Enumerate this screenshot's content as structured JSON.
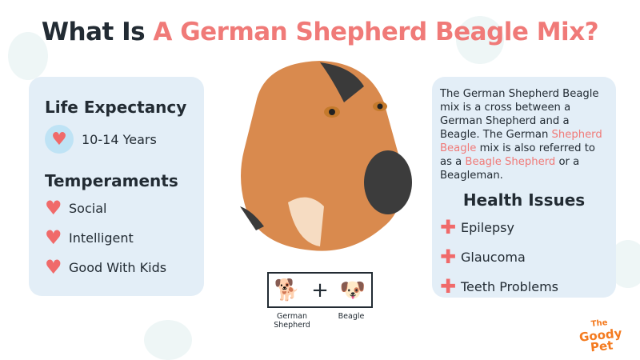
{
  "title": {
    "part1": "What Is ",
    "part2": "A German Shepherd Beagle Mix?"
  },
  "left": {
    "life_heading": "Life Expectancy",
    "life_value": "10-14 Years",
    "temp_heading": "Temperaments",
    "temperaments": [
      "Social",
      "Intelligent",
      "Good With Kids"
    ]
  },
  "right": {
    "desc": [
      "The German Shepherd Beagle mix is a cross between a German Shepherd and a Beagle. The German ",
      "Shepherd Beagle",
      " mix is also referred to as a ",
      "Beagle Shepherd",
      " or a Beagleman."
    ],
    "health_heading": "Health Issues",
    "issues": [
      "Epilepsy",
      "Glaucoma",
      "Teeth Problems"
    ]
  },
  "mix": {
    "parent1": "German Shepherd",
    "parent2": "Beagle",
    "plus": "+"
  },
  "logo": {
    "line1": "The",
    "line2": "Goody",
    "line3": "Pet"
  },
  "colors": {
    "accent": "#f07a78",
    "card": "#e3eef7",
    "text": "#222b33",
    "logo": "#f47b20"
  }
}
